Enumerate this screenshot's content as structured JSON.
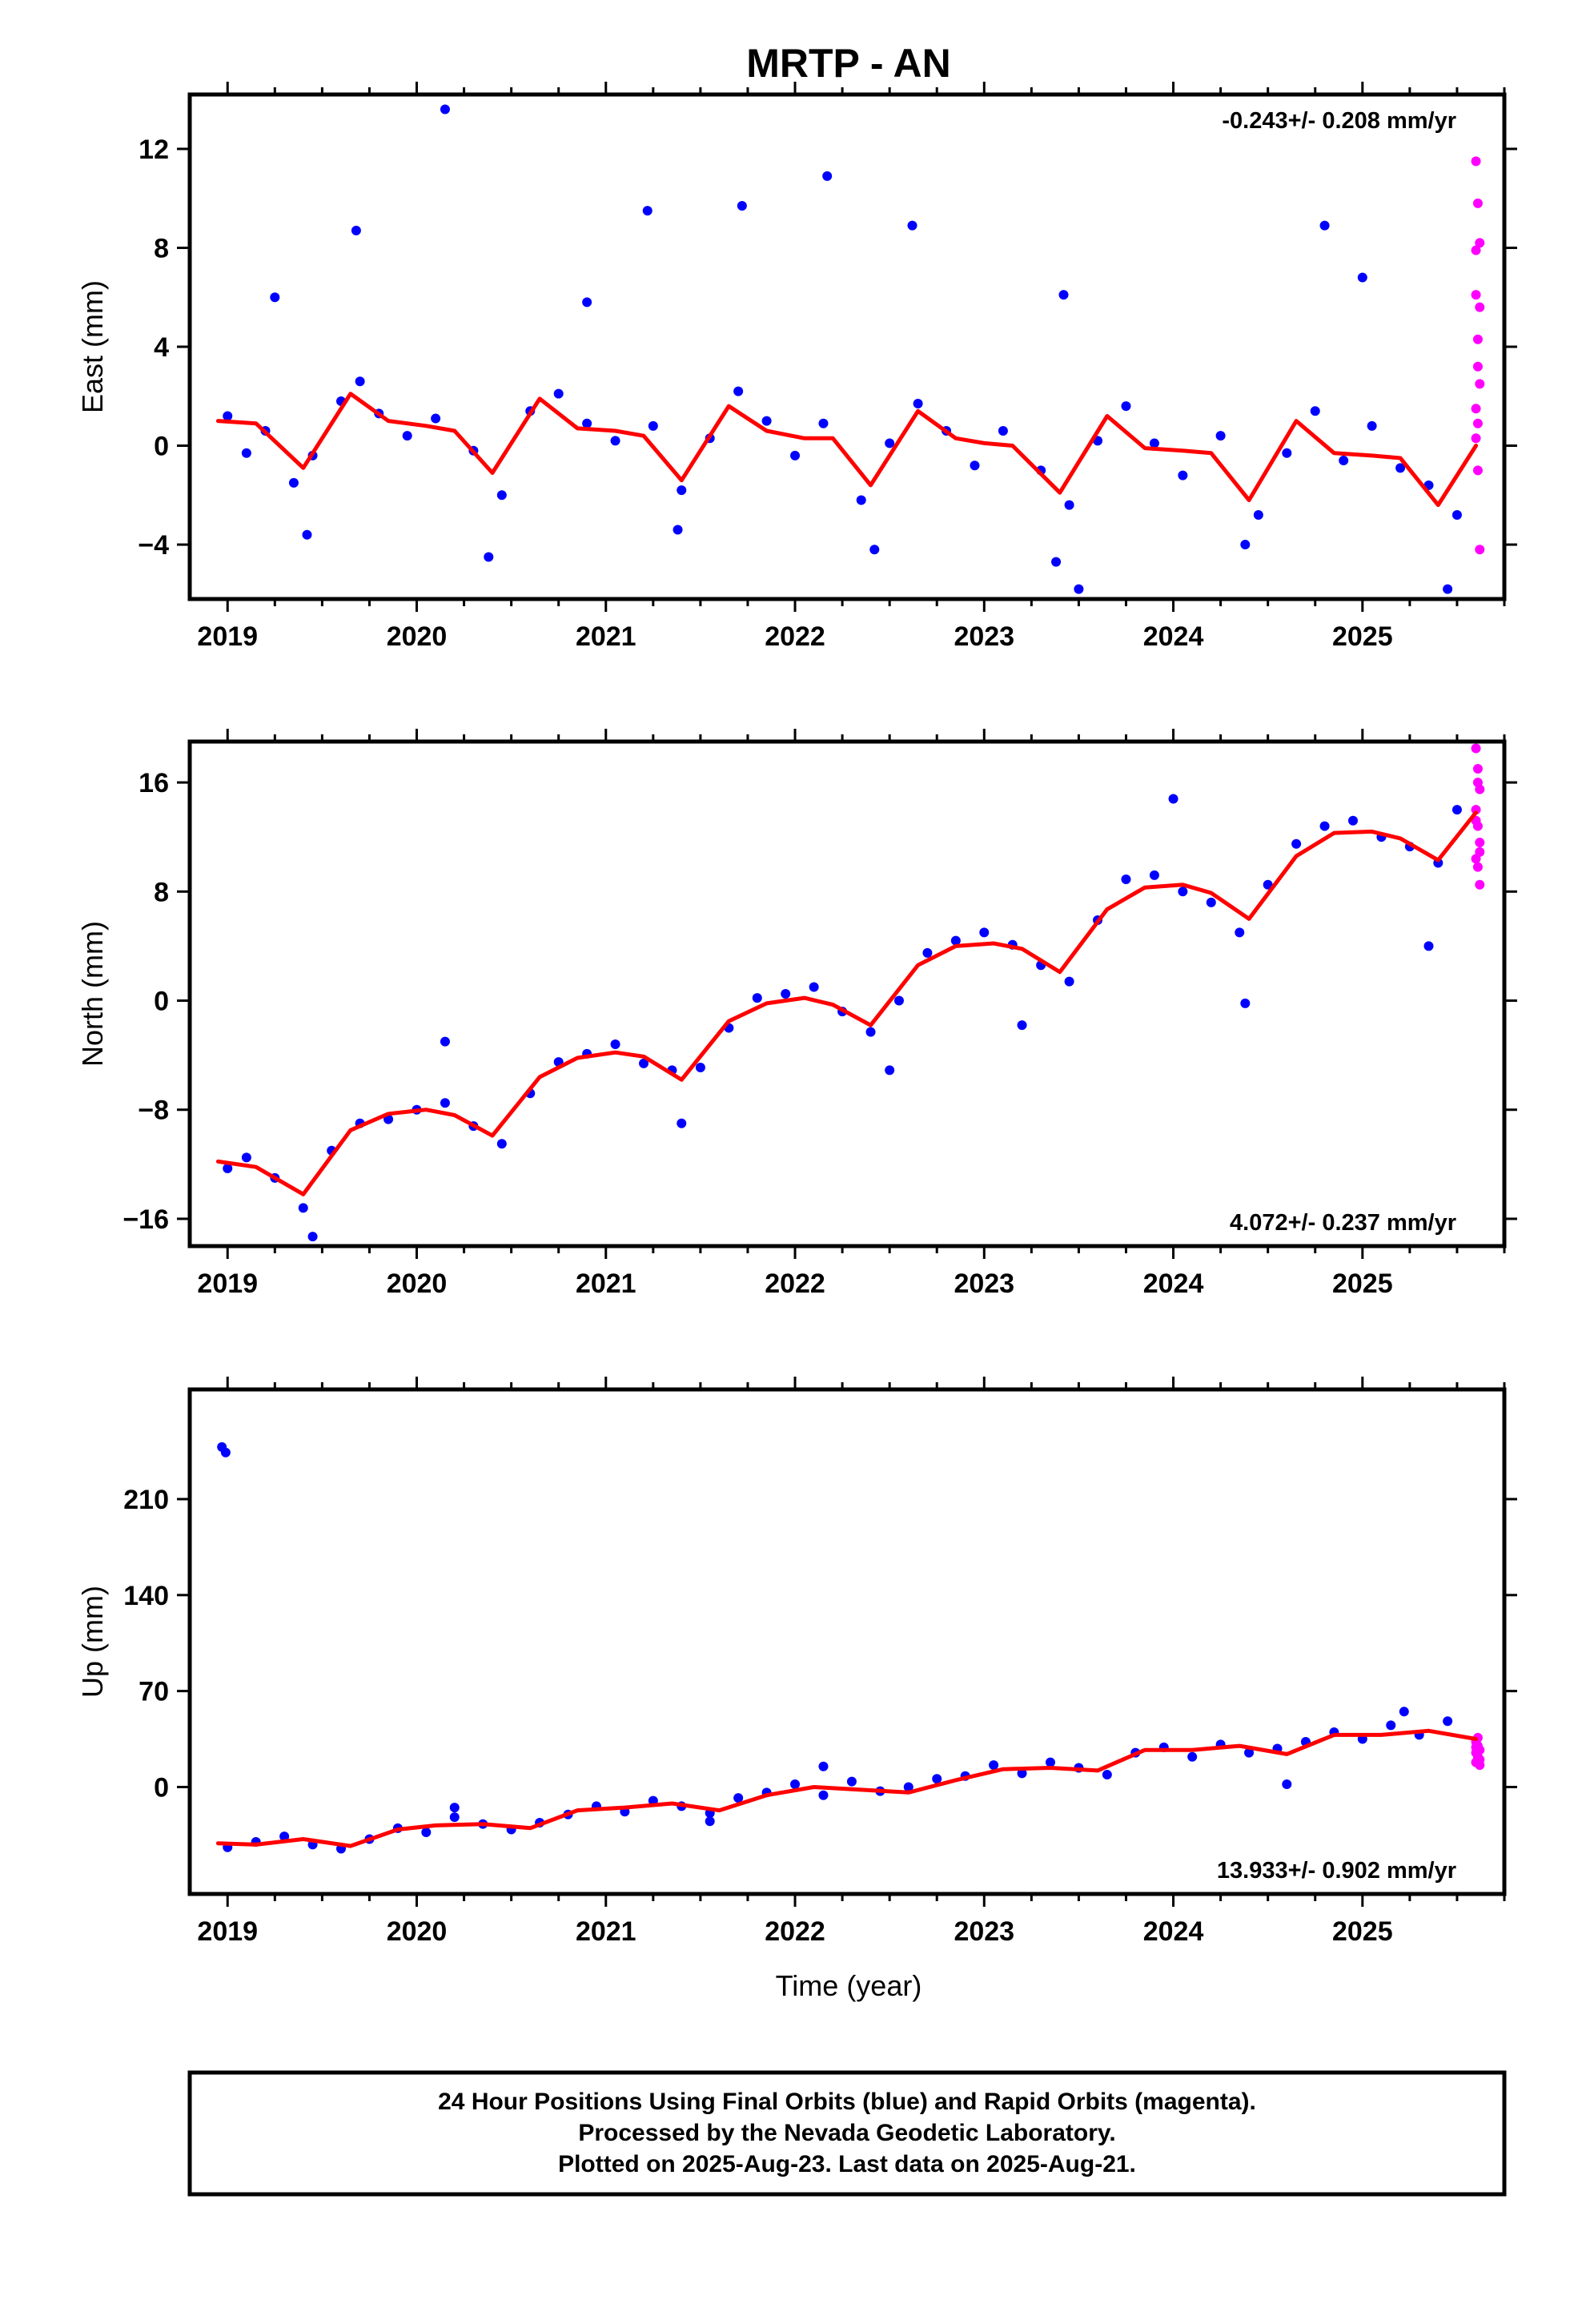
{
  "title": "MRTP - AN",
  "xlabel": "Time (year)",
  "colors": {
    "final": "#0000ff",
    "rapid": "#ff00ff",
    "model": "#ff0000",
    "frame": "#000000"
  },
  "caption": {
    "line1": "24 Hour Positions Using Final Orbits (blue) and Rapid Orbits (magenta).",
    "line2": "Processed by the Nevada Geodetic Laboratory.",
    "line3": "Plotted on 2025-Aug-23. Last data on 2025-Aug-21."
  },
  "chart_data": [
    {
      "type": "scatter",
      "ylabel": "East (mm)",
      "rate_text": "-0.243+/- 0.208 mm/yr",
      "xlim": [
        2018.8,
        2025.75
      ],
      "ylim": [
        -6.2,
        14.2
      ],
      "xticks": [
        2019,
        2020,
        2021,
        2022,
        2023,
        2024,
        2025
      ],
      "xtick_labels": [
        "2019",
        "2020",
        "2021",
        "2022",
        "2023",
        "2024",
        "2025"
      ],
      "yticks": [
        -4,
        0,
        4,
        8,
        12
      ],
      "ytick_labels": [
        "−4",
        "0",
        "4",
        "8",
        "12"
      ],
      "model_curve": {
        "name": "",
        "x": [
          2018.95,
          2019.15,
          2019.4,
          2019.65,
          2019.85,
          2020.05,
          2020.2,
          2020.4,
          2020.65,
          2020.85,
          2021.05,
          2021.2,
          2021.4,
          2021.65,
          2021.85,
          2022.05,
          2022.2,
          2022.4,
          2022.65,
          2022.85,
          2023.0,
          2023.15,
          2023.4,
          2023.65,
          2023.85,
          2024.05,
          2024.2,
          2024.4,
          2024.65,
          2024.85,
          2025.05,
          2025.2,
          2025.4,
          2025.6
        ],
        "y": [
          1.0,
          0.9,
          -0.9,
          2.1,
          1.0,
          0.8,
          0.6,
          -1.1,
          1.9,
          0.7,
          0.6,
          0.4,
          -1.4,
          1.6,
          0.6,
          0.3,
          0.3,
          -1.6,
          1.4,
          0.3,
          0.1,
          0.0,
          -1.9,
          1.2,
          -0.1,
          -0.2,
          -0.3,
          -2.2,
          1.0,
          -0.3,
          -0.4,
          -0.5,
          -2.4,
          0.0
        ]
      },
      "final_series": {
        "name": "",
        "x": [
          2019.0,
          2019.1,
          2019.2,
          2019.35,
          2019.45,
          2019.6,
          2019.7,
          2019.8,
          2019.95,
          2020.1,
          2020.3,
          2020.45,
          2020.6,
          2020.75,
          2020.9,
          2021.05,
          2021.25,
          2021.4,
          2021.55,
          2021.7,
          2021.85,
          2022.0,
          2022.15,
          2022.35,
          2022.5,
          2022.65,
          2022.8,
          2022.95,
          2023.1,
          2023.3,
          2023.45,
          2023.6,
          2023.75,
          2023.9,
          2024.05,
          2024.25,
          2024.45,
          2024.6,
          2024.75,
          2024.9,
          2025.05,
          2025.2,
          2025.35,
          2025.5,
          2019.25,
          2019.68,
          2020.15,
          2020.9,
          2021.22,
          2021.72,
          2022.17,
          2022.62,
          2023.42,
          2024.8,
          2025.0,
          2019.42,
          2020.38,
          2021.38,
          2022.42,
          2023.38,
          2023.5,
          2024.38,
          2025.45
        ],
        "y": [
          1.2,
          -0.3,
          0.6,
          -1.5,
          -0.4,
          1.8,
          2.6,
          1.3,
          0.4,
          1.1,
          -0.2,
          -2.0,
          1.4,
          2.1,
          0.9,
          0.2,
          0.8,
          -1.8,
          0.3,
          2.2,
          1.0,
          -0.4,
          0.9,
          -2.2,
          0.1,
          1.7,
          0.6,
          -0.8,
          0.6,
          -1.0,
          -2.4,
          0.2,
          1.6,
          0.1,
          -1.2,
          0.4,
          -2.8,
          -0.3,
          1.4,
          -0.6,
          0.8,
          -0.9,
          -1.6,
          -2.8,
          6.0,
          8.7,
          13.6,
          5.8,
          9.5,
          9.7,
          10.9,
          8.9,
          6.1,
          8.9,
          6.8,
          -3.6,
          -4.5,
          -3.4,
          -4.2,
          -4.7,
          -5.8,
          -4.0,
          -5.8
        ]
      },
      "rapid_series": {
        "name": "",
        "x": [
          2025.6,
          2025.61,
          2025.62,
          2025.6,
          2025.61,
          2025.62,
          2025.6,
          2025.61,
          2025.62,
          2025.6,
          2025.61,
          2025.62,
          2025.6,
          2025.61
        ],
        "y": [
          11.5,
          9.8,
          8.2,
          6.1,
          4.3,
          2.5,
          0.3,
          -1.0,
          -4.2,
          1.5,
          3.2,
          5.6,
          7.9,
          0.9
        ]
      }
    },
    {
      "type": "scatter",
      "ylabel": "North (mm)",
      "rate_text": "4.072+/- 0.237 mm/yr",
      "xlim": [
        2018.8,
        2025.75
      ],
      "ylim": [
        -18,
        19
      ],
      "xticks": [
        2019,
        2020,
        2021,
        2022,
        2023,
        2024,
        2025
      ],
      "xtick_labels": [
        "2019",
        "2020",
        "2021",
        "2022",
        "2023",
        "2024",
        "2025"
      ],
      "yticks": [
        -16,
        -8,
        0,
        8,
        16
      ],
      "ytick_labels": [
        "−16",
        "−8",
        "0",
        "8",
        "16"
      ],
      "model_curve": {
        "name": "",
        "x": [
          2018.95,
          2019.15,
          2019.4,
          2019.65,
          2019.85,
          2020.05,
          2020.2,
          2020.4,
          2020.65,
          2020.85,
          2021.05,
          2021.2,
          2021.4,
          2021.65,
          2021.85,
          2022.05,
          2022.2,
          2022.4,
          2022.65,
          2022.85,
          2023.05,
          2023.2,
          2023.4,
          2023.65,
          2023.85,
          2024.05,
          2024.2,
          2024.4,
          2024.65,
          2024.85,
          2025.05,
          2025.2,
          2025.4,
          2025.6
        ],
        "y": [
          -11.8,
          -12.2,
          -14.2,
          -9.5,
          -8.3,
          -8.0,
          -8.4,
          -9.9,
          -5.6,
          -4.2,
          -3.8,
          -4.1,
          -5.8,
          -1.5,
          -0.2,
          0.2,
          -0.3,
          -1.8,
          2.6,
          4.0,
          4.2,
          3.8,
          2.1,
          6.7,
          8.3,
          8.5,
          7.9,
          6.0,
          10.6,
          12.3,
          12.4,
          11.9,
          10.3,
          13.8
        ]
      },
      "final_series": {
        "name": "",
        "x": [
          2019.0,
          2019.1,
          2019.25,
          2019.4,
          2019.55,
          2019.7,
          2019.85,
          2020.0,
          2020.15,
          2020.3,
          2020.45,
          2020.6,
          2020.75,
          2020.9,
          2021.05,
          2021.2,
          2021.35,
          2021.5,
          2021.65,
          2021.8,
          2021.95,
          2022.1,
          2022.25,
          2022.4,
          2022.55,
          2022.7,
          2022.85,
          2023.0,
          2023.15,
          2023.3,
          2023.45,
          2023.6,
          2023.75,
          2023.9,
          2024.05,
          2024.2,
          2024.35,
          2024.5,
          2024.65,
          2024.8,
          2024.95,
          2025.1,
          2025.25,
          2025.4,
          2025.5,
          2019.45,
          2020.15,
          2021.4,
          2022.5,
          2023.2,
          2024.0,
          2024.38,
          2025.35
        ],
        "y": [
          -12.3,
          -11.5,
          -13.0,
          -15.2,
          -11.0,
          -9.0,
          -8.7,
          -8.0,
          -7.5,
          -9.2,
          -10.5,
          -6.8,
          -4.5,
          -3.9,
          -3.2,
          -4.6,
          -5.1,
          -4.9,
          -2.0,
          0.2,
          0.5,
          1.0,
          -0.8,
          -2.3,
          0.0,
          3.5,
          4.4,
          5.0,
          4.1,
          2.6,
          1.4,
          5.9,
          8.9,
          9.2,
          8.0,
          7.2,
          5.0,
          8.5,
          11.5,
          12.8,
          13.2,
          12.0,
          11.3,
          10.1,
          14.0,
          -17.3,
          -3.0,
          -9.0,
          -5.1,
          -1.8,
          14.8,
          -0.2,
          4.0
        ]
      },
      "rapid_series": {
        "name": "",
        "x": [
          2025.6,
          2025.61,
          2025.62,
          2025.6,
          2025.61,
          2025.62,
          2025.6,
          2025.61,
          2025.62,
          2025.6,
          2025.61,
          2025.62
        ],
        "y": [
          18.5,
          17.0,
          15.5,
          14.0,
          12.8,
          11.6,
          10.4,
          9.8,
          8.5,
          13.2,
          16.0,
          10.9
        ]
      }
    },
    {
      "type": "scatter",
      "ylabel": "Up (mm)",
      "rate_text": "13.933+/- 0.902 mm/yr",
      "xlim": [
        2018.8,
        2025.75
      ],
      "ylim": [
        -78,
        290
      ],
      "xticks": [
        2019,
        2020,
        2021,
        2022,
        2023,
        2024,
        2025
      ],
      "xtick_labels": [
        "2019",
        "2020",
        "2021",
        "2022",
        "2023",
        "2024",
        "2025"
      ],
      "yticks": [
        0,
        70,
        140,
        210
      ],
      "ytick_labels": [
        "0",
        "70",
        "140",
        "210"
      ],
      "model_curve": {
        "name": "",
        "x": [
          2018.95,
          2019.15,
          2019.4,
          2019.65,
          2019.9,
          2020.1,
          2020.35,
          2020.6,
          2020.85,
          2021.1,
          2021.35,
          2021.6,
          2021.85,
          2022.1,
          2022.35,
          2022.6,
          2022.85,
          2023.1,
          2023.35,
          2023.6,
          2023.85,
          2024.1,
          2024.35,
          2024.6,
          2024.85,
          2025.1,
          2025.35,
          2025.6
        ],
        "y": [
          -41,
          -42,
          -38,
          -43,
          -31,
          -28,
          -27,
          -30,
          -17,
          -15,
          -12,
          -17,
          -6,
          0,
          -2,
          -4,
          5,
          13,
          14,
          12,
          27,
          27,
          30,
          24,
          38,
          38,
          41,
          35
        ]
      },
      "final_series": {
        "name": "",
        "x": [
          2019.0,
          2019.15,
          2019.3,
          2019.45,
          2019.6,
          2019.75,
          2019.9,
          2020.05,
          2020.2,
          2020.35,
          2020.5,
          2020.65,
          2020.8,
          2020.95,
          2021.1,
          2021.25,
          2021.4,
          2021.55,
          2021.7,
          2021.85,
          2022.0,
          2022.15,
          2022.3,
          2022.45,
          2022.6,
          2022.75,
          2022.9,
          2023.05,
          2023.2,
          2023.35,
          2023.5,
          2023.65,
          2023.8,
          2023.95,
          2024.1,
          2024.25,
          2024.4,
          2024.55,
          2024.7,
          2024.85,
          2025.0,
          2025.15,
          2025.3,
          2025.45,
          2018.97,
          2018.99,
          2020.2,
          2021.55,
          2022.15,
          2024.6,
          2025.22
        ],
        "y": [
          -44,
          -40,
          -36,
          -42,
          -45,
          -38,
          -30,
          -33,
          -22,
          -27,
          -31,
          -26,
          -20,
          -14,
          -18,
          -10,
          -14,
          -19,
          -8,
          -4,
          2,
          -6,
          4,
          -3,
          0,
          6,
          8,
          16,
          10,
          18,
          14,
          9,
          25,
          29,
          22,
          31,
          25,
          28,
          33,
          40,
          35,
          45,
          38,
          48,
          248,
          244,
          -15,
          -25,
          15,
          2,
          55
        ]
      },
      "rapid_series": {
        "name": "",
        "x": [
          2025.6,
          2025.61,
          2025.62,
          2025.6,
          2025.61,
          2025.62,
          2025.6,
          2025.61,
          2025.62,
          2025.6
        ],
        "y": [
          33,
          30,
          27,
          25,
          22,
          20,
          18,
          36,
          16,
          29
        ]
      }
    }
  ]
}
